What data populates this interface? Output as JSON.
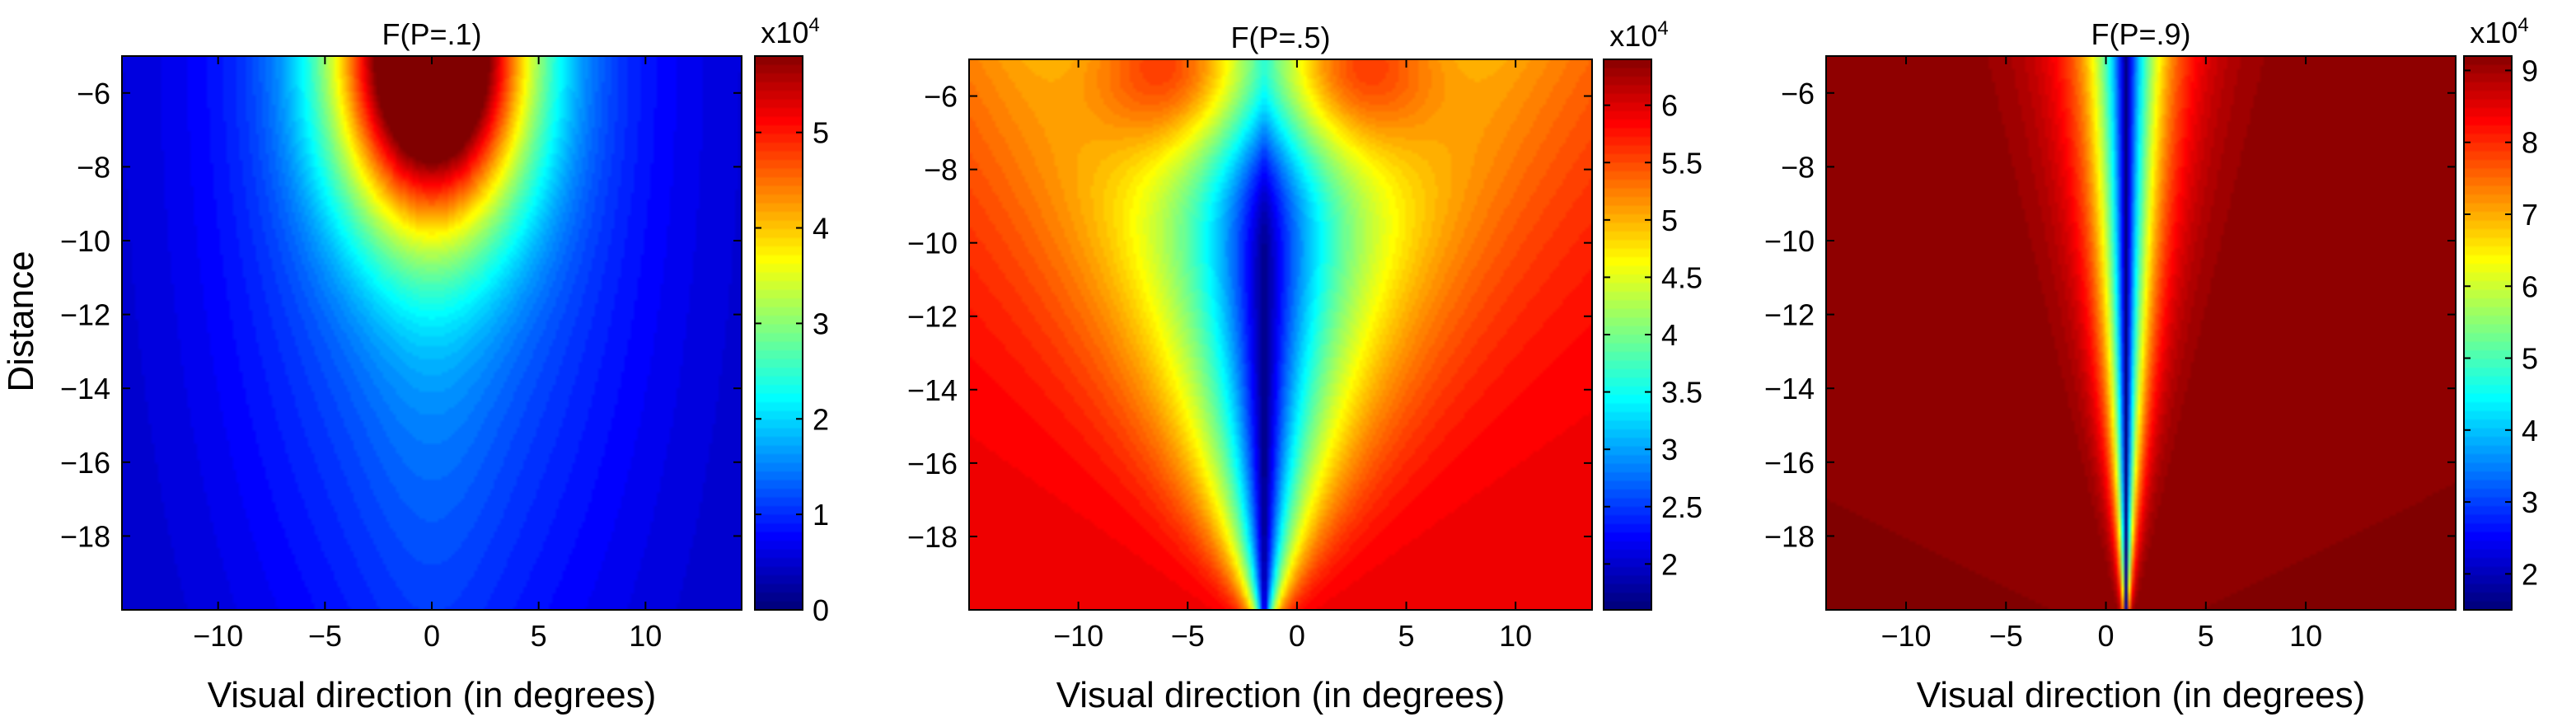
{
  "figure": {
    "ylabel": "Distance",
    "xlabel": "Visual direction (in degrees)"
  },
  "chart_data": [
    {
      "type": "heatmap",
      "title": "F(P=.1)",
      "xlabel": "Visual direction (in degrees)",
      "ylabel": "Distance",
      "xlim": [
        -14.5,
        14.5
      ],
      "ylim": [
        -20,
        -5
      ],
      "xticks": [
        -10,
        -5,
        0,
        5,
        10
      ],
      "yticks": [
        -6,
        -8,
        -10,
        -12,
        -14,
        -16,
        -18
      ],
      "colorbar": {
        "min": 0,
        "max": 5.8,
        "ticks": [
          0,
          1,
          2,
          3,
          4,
          5
        ],
        "multiplier": "x10",
        "exponent": "4"
      },
      "field": {
        "kind": "peak",
        "x0": 0,
        "y0": -5,
        "amp": 5.8,
        "floor": 0.4,
        "sx": 3.2,
        "sy": 3.2,
        "px": 7,
        "py": 12,
        "pa": 1.2,
        "line": 0.5
      },
      "colormap": "jet",
      "grid": false
    },
    {
      "type": "heatmap",
      "title": "F(P=.5)",
      "xlabel": "Visual direction (in degrees)",
      "xlim": [
        -15,
        13.5
      ],
      "ylim": [
        -20,
        -5
      ],
      "xticks": [
        -10,
        -5,
        0,
        5,
        10
      ],
      "yticks": [
        -6,
        -8,
        -10,
        -12,
        -14,
        -16,
        -18
      ],
      "colorbar": {
        "min": 1.6,
        "max": 6.4,
        "ticks": [
          2,
          2.5,
          3,
          3.5,
          4,
          4.5,
          5,
          5.5,
          6
        ],
        "multiplier": "x10",
        "exponent": "4"
      },
      "field": {
        "kind": "v",
        "x0": -1.5,
        "base": 1.6,
        "k": 0.11,
        "sat": 4.3,
        "bumpX": 3.5,
        "bumpAmp": 2.0,
        "bumpSx": 3.0,
        "bumpSy": 2.0
      },
      "colormap": "jet",
      "grid": false
    },
    {
      "type": "heatmap",
      "title": "F(P=.9)",
      "xlabel": "Visual direction (in degrees)",
      "xlim": [
        -14,
        17.5
      ],
      "ylim": [
        -20,
        -5
      ],
      "xticks": [
        -10,
        -5,
        0,
        5,
        10
      ],
      "yticks": [
        -6,
        -8,
        -10,
        -12,
        -14,
        -16,
        -18
      ],
      "colorbar": {
        "min": 1.5,
        "max": 9.2,
        "ticks": [
          2,
          3,
          4,
          5,
          6,
          7,
          8,
          9
        ],
        "multiplier": "x10",
        "exponent": "4"
      },
      "field": {
        "kind": "v",
        "x0": 1,
        "base": 1.5,
        "k": 0.48,
        "sat": 7.7,
        "bumpX": 0,
        "bumpAmp": 0,
        "bumpSx": 1,
        "bumpSy": 1
      },
      "colormap": "jet",
      "grid": false
    }
  ]
}
